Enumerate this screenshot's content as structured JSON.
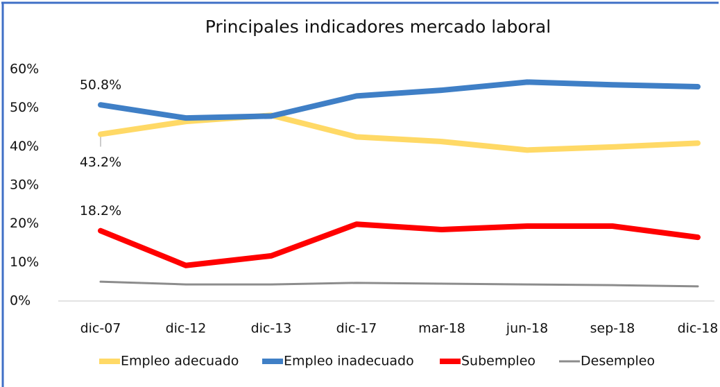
{
  "chart_data": {
    "type": "line",
    "title": "Principales indicadores mercado laboral",
    "categories": [
      "dic-07",
      "dic-12",
      "dic-13",
      "dic-17",
      "mar-18",
      "jun-18",
      "sep-18",
      "dic-18"
    ],
    "series": [
      {
        "name": "Empleo adecuado",
        "color": "#ffd966",
        "values": [
          43.2,
          46.5,
          48.1,
          42.5,
          41.3,
          39.1,
          39.9,
          40.9
        ],
        "value_labels": [
          "43.2%",
          null,
          null,
          null,
          null,
          null,
          null,
          null
        ]
      },
      {
        "name": "Empleo inadecuado",
        "color": "#3f7fc6",
        "values": [
          50.8,
          47.4,
          47.9,
          53.1,
          54.6,
          56.7,
          56.0,
          55.5
        ],
        "value_labels": [
          "50.8%",
          null,
          null,
          null,
          null,
          null,
          null,
          null
        ]
      },
      {
        "name": "Subempleo",
        "color": "#ff0000",
        "values": [
          18.2,
          9.2,
          11.7,
          19.9,
          18.5,
          19.4,
          19.4,
          16.5
        ],
        "value_labels": [
          "18.2%",
          null,
          null,
          null,
          null,
          null,
          null,
          null
        ]
      },
      {
        "name": "Desempleo",
        "color": "#8c8c8c",
        "values": [
          5.0,
          4.3,
          4.3,
          4.7,
          4.5,
          4.3,
          4.1,
          3.8
        ]
      }
    ],
    "ylim": [
      0,
      60
    ],
    "yticks": [
      {
        "value": 0,
        "label": "0%"
      },
      {
        "value": 10,
        "label": "10%"
      },
      {
        "value": 20,
        "label": "20%"
      },
      {
        "value": 30,
        "label": "30%"
      },
      {
        "value": 40,
        "label": "40%"
      },
      {
        "value": 50,
        "label": "50%"
      },
      {
        "value": 60,
        "label": "60%"
      }
    ],
    "grid": false,
    "legend": "bottom"
  }
}
